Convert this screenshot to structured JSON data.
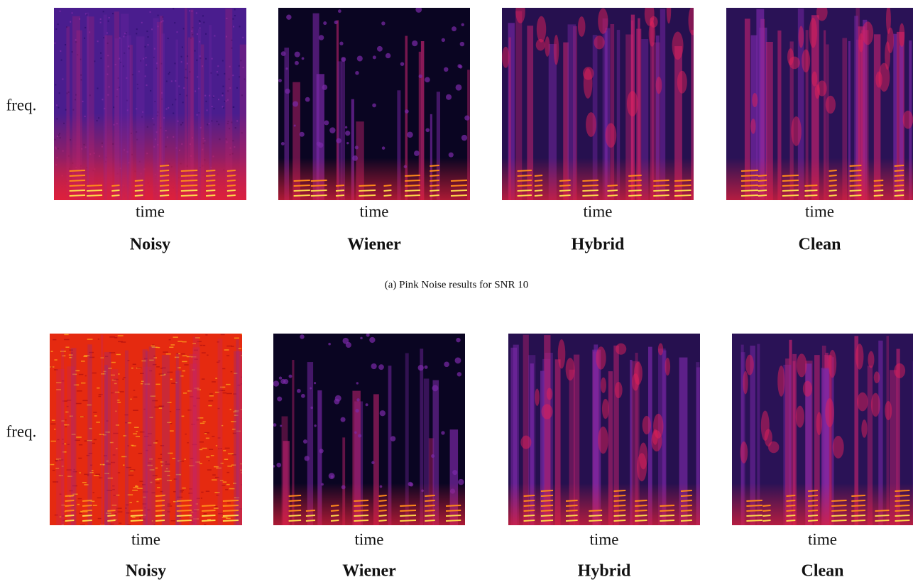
{
  "figures": [
    {
      "y_label": "freq.",
      "panels": [
        {
          "x_label": "time",
          "title": "Noisy"
        },
        {
          "x_label": "time",
          "title": "Wiener"
        },
        {
          "x_label": "time",
          "title": "Hybrid"
        },
        {
          "x_label": "time",
          "title": "Clean"
        }
      ],
      "caption": "(a) Pink Noise results for SNR 10"
    },
    {
      "y_label": "freq.",
      "panels": [
        {
          "x_label": "time",
          "title": "Noisy"
        },
        {
          "x_label": "time",
          "title": "Wiener"
        },
        {
          "x_label": "time",
          "title": "Hybrid"
        },
        {
          "x_label": "time",
          "title": "Clean"
        }
      ]
    }
  ]
}
